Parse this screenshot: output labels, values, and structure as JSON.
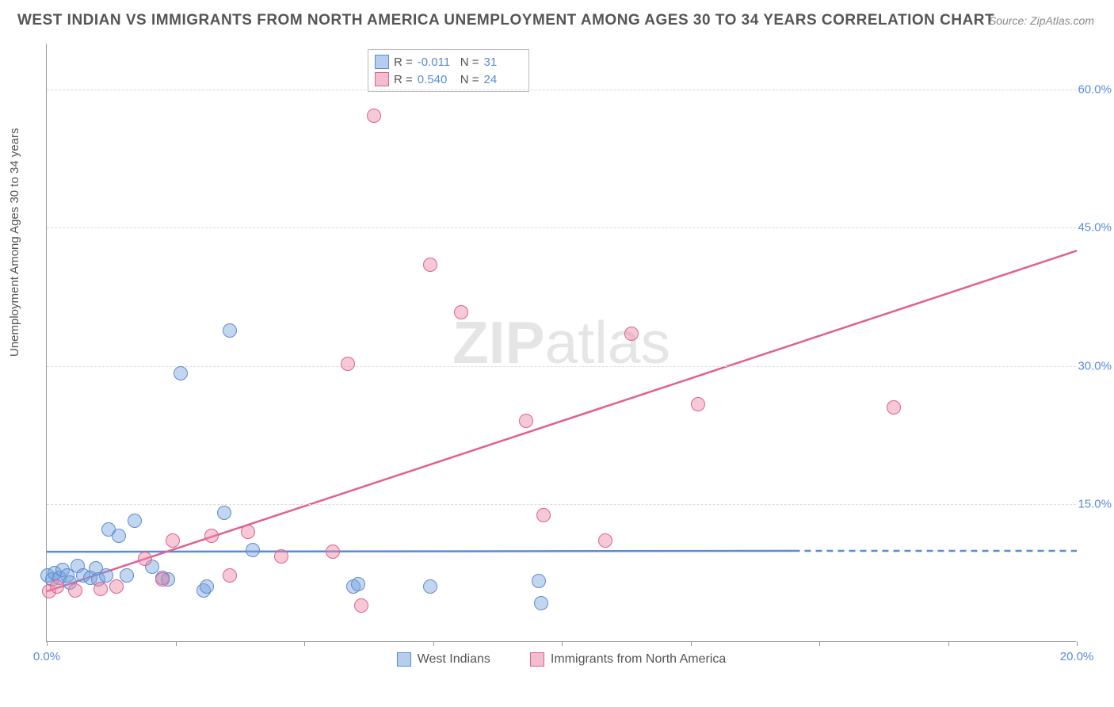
{
  "title": "WEST INDIAN VS IMMIGRANTS FROM NORTH AMERICA UNEMPLOYMENT AMONG AGES 30 TO 34 YEARS CORRELATION CHART",
  "source": "Source: ZipAtlas.com",
  "ylabel": "Unemployment Among Ages 30 to 34 years",
  "watermark_a": "ZIP",
  "watermark_b": "atlas",
  "chart": {
    "type": "scatter",
    "background_color": "#ffffff",
    "grid_color": "#dddddd",
    "axis_color": "#999999",
    "tick_color": "#5b8bd4",
    "xlim": [
      0,
      20
    ],
    "ylim": [
      0,
      65
    ],
    "x_ticks": [
      0,
      2.5,
      5,
      7.5,
      10,
      12.5,
      15,
      17.5,
      20
    ],
    "x_tick_labels": {
      "0": "0.0%",
      "20": "20.0%"
    },
    "y_gridlines": [
      15,
      30,
      45,
      60
    ],
    "y_tick_labels": {
      "15": "15.0%",
      "30": "30.0%",
      "45": "45.0%",
      "60": "60.0%"
    },
    "marker_radius": 9,
    "marker_stroke_width": 1.5,
    "trend_line_width": 2.5,
    "series": [
      {
        "name": "West Indians",
        "fill": "rgba(120,165,220,0.45)",
        "stroke": "#5b8bd4",
        "R_label": "R =",
        "R": "-0.011",
        "N_label": "N =",
        "N": "31",
        "trend": {
          "x1": 0,
          "y1": 9.8,
          "x2": 14.5,
          "y2": 9.9,
          "dash_from_x": 14.5,
          "dash_to_x": 20,
          "dash_y": 9.9
        },
        "points": [
          [
            0.02,
            7.2
          ],
          [
            0.1,
            6.8
          ],
          [
            0.15,
            7.5
          ],
          [
            0.25,
            7.0
          ],
          [
            0.3,
            7.8
          ],
          [
            0.4,
            7.2
          ],
          [
            0.45,
            6.5
          ],
          [
            0.6,
            8.3
          ],
          [
            0.7,
            7.2
          ],
          [
            0.85,
            7.0
          ],
          [
            0.95,
            8.0
          ],
          [
            1.0,
            6.8
          ],
          [
            1.15,
            7.2
          ],
          [
            1.2,
            12.2
          ],
          [
            1.4,
            11.5
          ],
          [
            1.55,
            7.2
          ],
          [
            1.7,
            13.2
          ],
          [
            2.05,
            8.2
          ],
          [
            2.25,
            7.0
          ],
          [
            2.35,
            6.8
          ],
          [
            2.6,
            29.2
          ],
          [
            3.05,
            5.6
          ],
          [
            3.1,
            6.0
          ],
          [
            3.45,
            14.0
          ],
          [
            3.55,
            33.8
          ],
          [
            4.0,
            10.0
          ],
          [
            5.95,
            6.0
          ],
          [
            6.05,
            6.3
          ],
          [
            7.45,
            6.0
          ],
          [
            9.55,
            6.6
          ],
          [
            9.6,
            4.2
          ]
        ]
      },
      {
        "name": "Immigrants from North America",
        "fill": "rgba(235,135,165,0.45)",
        "stroke": "#e06090",
        "R_label": "R =",
        "R": "0.540",
        "N_label": "N =",
        "N": "24",
        "trend": {
          "x1": 0,
          "y1": 5.5,
          "x2": 20,
          "y2": 42.5
        },
        "points": [
          [
            0.05,
            5.5
          ],
          [
            0.2,
            6.0
          ],
          [
            0.55,
            5.6
          ],
          [
            1.05,
            5.8
          ],
          [
            1.35,
            6.0
          ],
          [
            1.9,
            9.0
          ],
          [
            2.25,
            6.8
          ],
          [
            2.45,
            11.0
          ],
          [
            3.2,
            11.5
          ],
          [
            3.55,
            7.2
          ],
          [
            3.9,
            12.0
          ],
          [
            4.55,
            9.3
          ],
          [
            5.55,
            9.8
          ],
          [
            5.85,
            30.2
          ],
          [
            6.1,
            4.0
          ],
          [
            6.35,
            57.2
          ],
          [
            7.45,
            41.0
          ],
          [
            8.05,
            35.8
          ],
          [
            9.3,
            24.0
          ],
          [
            9.65,
            13.8
          ],
          [
            10.85,
            11.0
          ],
          [
            11.35,
            33.5
          ],
          [
            12.65,
            25.8
          ],
          [
            16.45,
            25.5
          ]
        ]
      }
    ],
    "legend_labels": [
      "West Indians",
      "Immigrants from North America"
    ]
  }
}
